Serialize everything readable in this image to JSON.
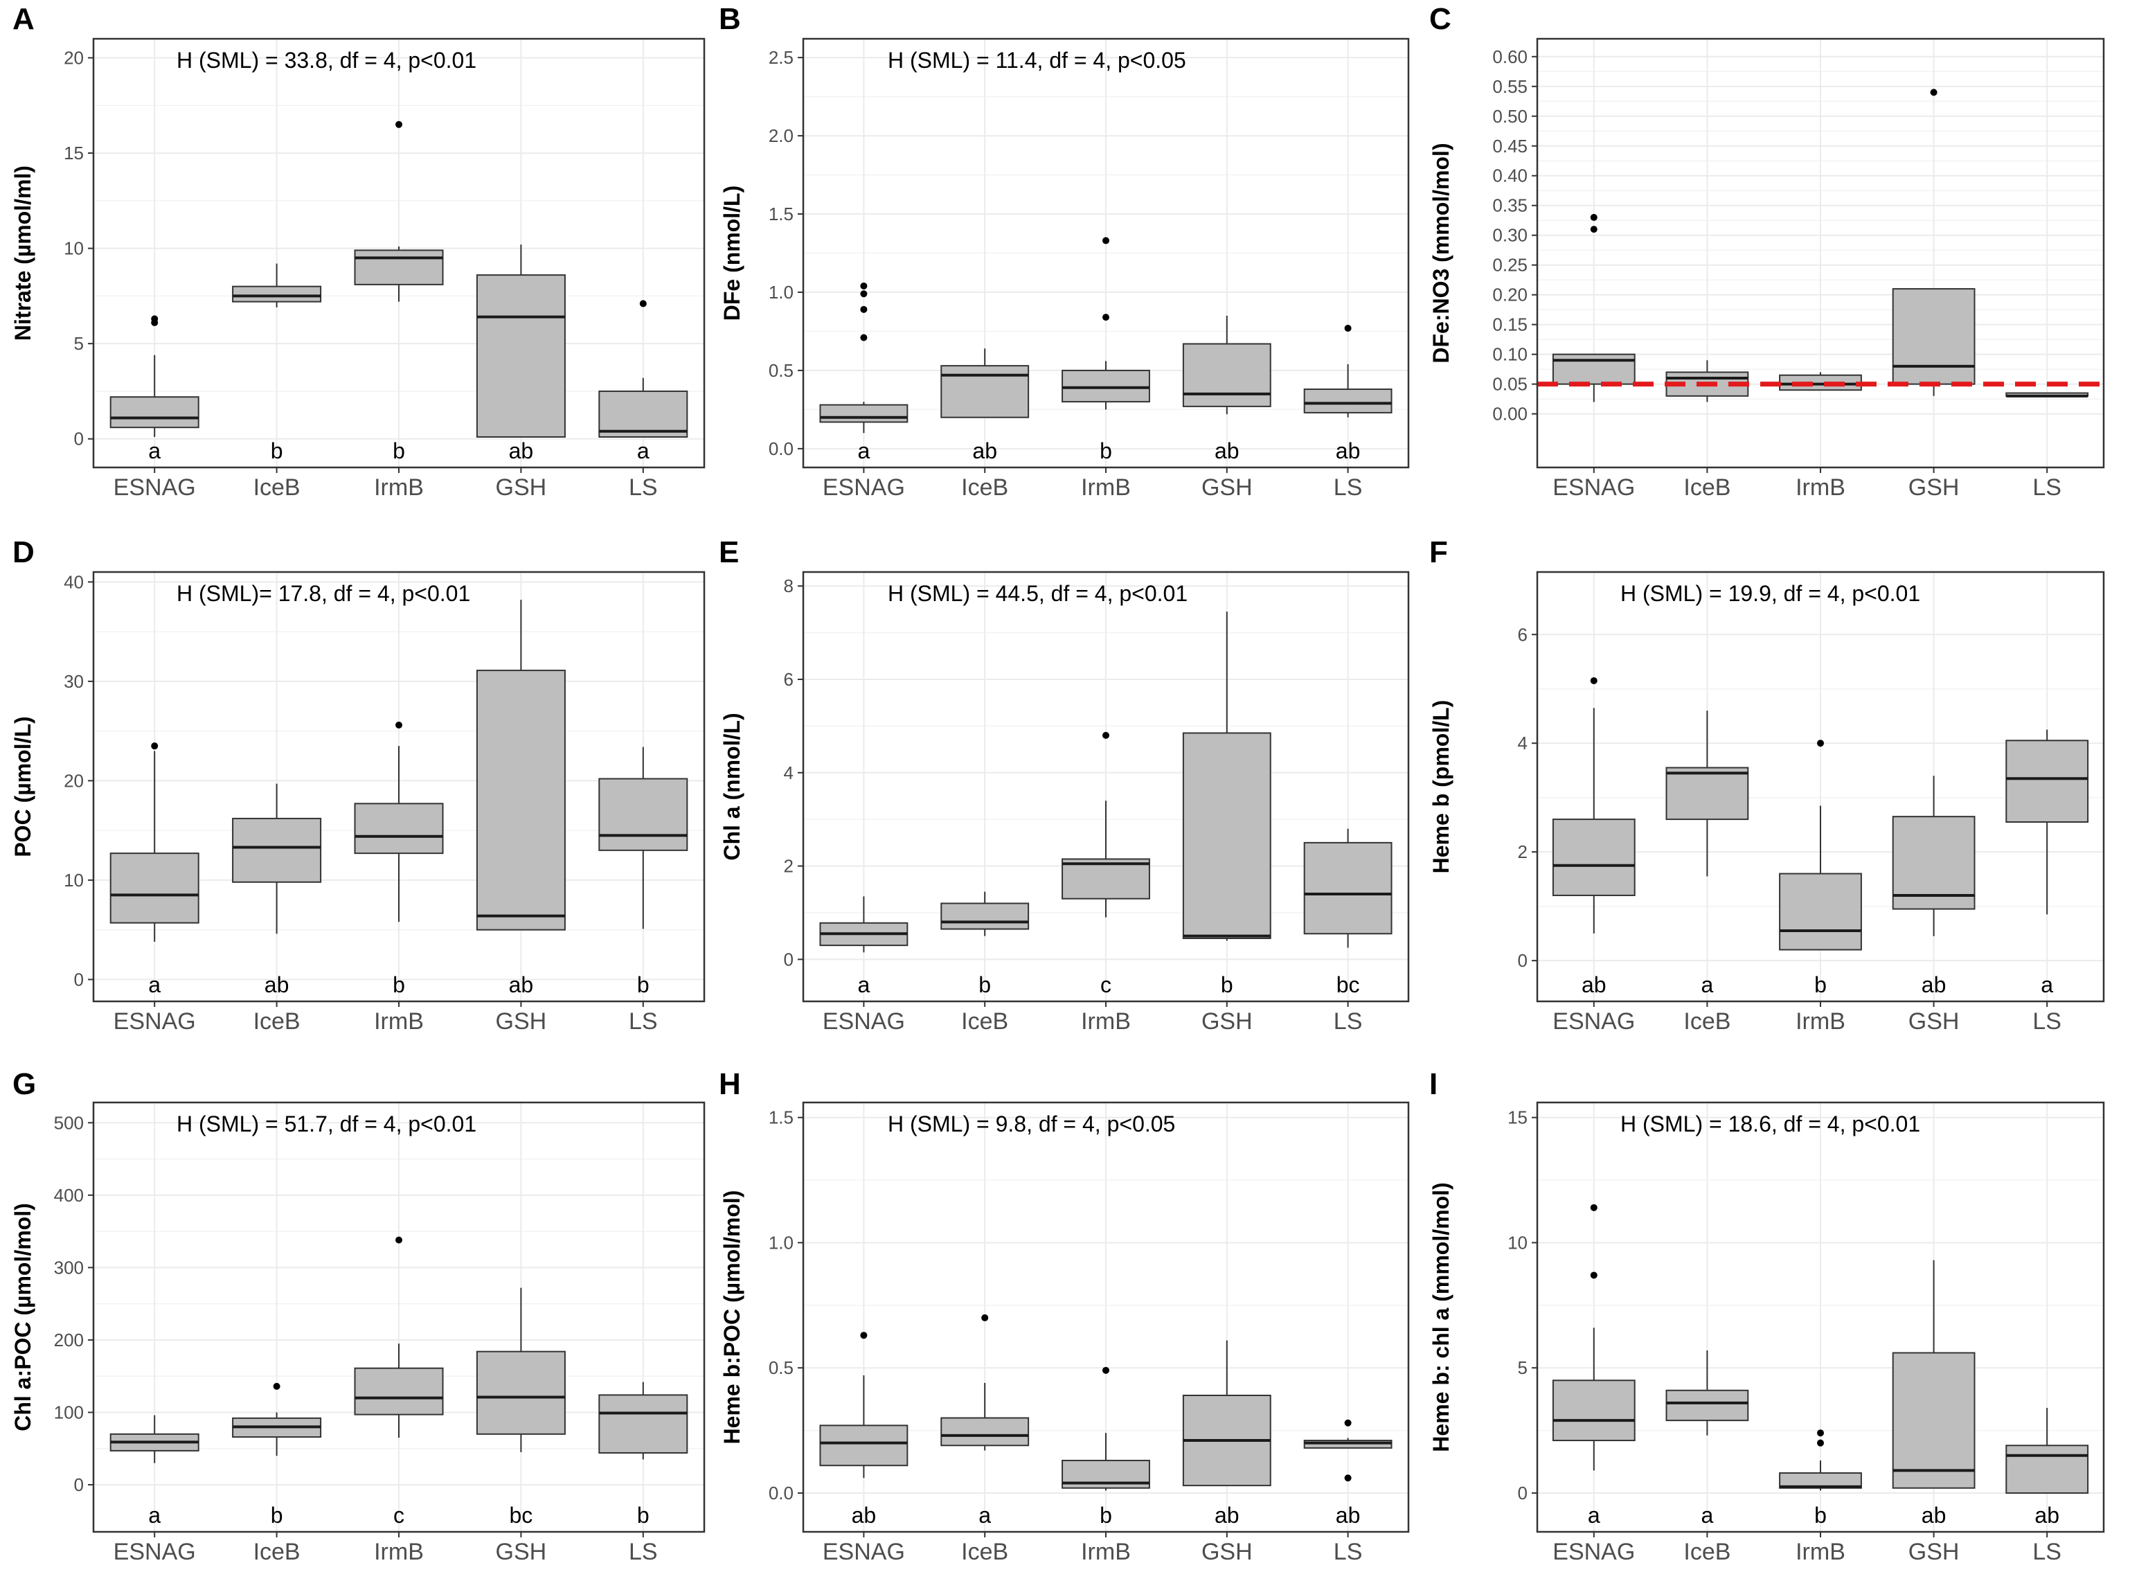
{
  "figure": {
    "groups": [
      "ESNAG",
      "IceB",
      "IrmB",
      "GSH",
      "LS"
    ],
    "colors": {
      "box_fill": "#bebebe",
      "grid": "#ebebeb",
      "frame": "#333333",
      "reference_line": "#e31a1c"
    }
  },
  "chart_data": [
    {
      "panel": "A",
      "type": "box",
      "ylabel": "Nitrate (µmol/ml)",
      "annotation": "H (SML) = 33.8, df = 4, p<0.01",
      "ylim": [
        -1.5,
        21
      ],
      "yticks": [
        0,
        5,
        10,
        15,
        20
      ],
      "yticklabels": [
        "0",
        "5",
        "10",
        "15",
        "20"
      ],
      "categories": [
        "ESNAG",
        "IceB",
        "IrmB",
        "GSH",
        "LS"
      ],
      "boxes": [
        {
          "category": "ESNAG",
          "whisker_low": 0.1,
          "q1": 0.6,
          "median": 1.1,
          "q3": 2.2,
          "whisker_high": 4.4,
          "outliers": [
            6.1,
            6.3
          ]
        },
        {
          "category": "IceB",
          "whisker_low": 6.9,
          "q1": 7.2,
          "median": 7.5,
          "q3": 8.0,
          "whisker_high": 9.2,
          "outliers": []
        },
        {
          "category": "IrmB",
          "whisker_low": 7.2,
          "q1": 8.1,
          "median": 9.5,
          "q3": 9.9,
          "whisker_high": 10.1,
          "outliers": [
            16.5
          ]
        },
        {
          "category": "GSH",
          "whisker_low": 0.1,
          "q1": 0.1,
          "median": 6.4,
          "q3": 8.6,
          "whisker_high": 10.2,
          "outliers": []
        },
        {
          "category": "LS",
          "whisker_low": 0.1,
          "q1": 0.1,
          "median": 0.4,
          "q3": 2.5,
          "whisker_high": 3.2,
          "outliers": [
            7.1
          ]
        }
      ],
      "group_letters": [
        "a",
        "b",
        "b",
        "ab",
        "a"
      ]
    },
    {
      "panel": "B",
      "type": "box",
      "ylabel": "DFe (nmol/L)",
      "annotation": "H (SML) = 11.4, df = 4, p<0.05",
      "ylim": [
        -0.12,
        2.62
      ],
      "yticks": [
        0,
        0.5,
        1,
        1.5,
        2,
        2.5
      ],
      "yticklabels": [
        "0.0",
        "0.5",
        "1.0",
        "1.5",
        "2.0",
        "2.5"
      ],
      "categories": [
        "ESNAG",
        "IceB",
        "IrmB",
        "GSH",
        "LS"
      ],
      "boxes": [
        {
          "category": "ESNAG",
          "whisker_low": 0.1,
          "q1": 0.17,
          "median": 0.2,
          "q3": 0.28,
          "whisker_high": 0.3,
          "outliers": [
            0.71,
            0.89,
            0.99,
            1.04
          ]
        },
        {
          "category": "IceB",
          "whisker_low": 0.2,
          "q1": 0.2,
          "median": 0.47,
          "q3": 0.53,
          "whisker_high": 0.64,
          "outliers": []
        },
        {
          "category": "IrmB",
          "whisker_low": 0.25,
          "q1": 0.3,
          "median": 0.39,
          "q3": 0.5,
          "whisker_high": 0.56,
          "outliers": [
            0.84,
            1.33
          ]
        },
        {
          "category": "GSH",
          "whisker_low": 0.22,
          "q1": 0.27,
          "median": 0.35,
          "q3": 0.67,
          "whisker_high": 0.85,
          "outliers": []
        },
        {
          "category": "LS",
          "whisker_low": 0.2,
          "q1": 0.23,
          "median": 0.29,
          "q3": 0.38,
          "whisker_high": 0.54,
          "outliers": [
            0.77
          ]
        }
      ],
      "group_letters": [
        "a",
        "ab",
        "b",
        "ab",
        "ab"
      ]
    },
    {
      "panel": "C",
      "type": "box",
      "ylabel": "DFe:NO3 (mmol/mol)",
      "annotation": "",
      "ylim": [
        -0.09,
        0.63
      ],
      "yticks": [
        0,
        0.05,
        0.1,
        0.15,
        0.2,
        0.25,
        0.3,
        0.35,
        0.4,
        0.45,
        0.5,
        0.55,
        0.6
      ],
      "yticklabels": [
        "0.00",
        "0.05",
        "0.10",
        "0.15",
        "0.20",
        "0.25",
        "0.30",
        "0.35",
        "0.40",
        "0.45",
        "0.50",
        "0.55",
        "0.60"
      ],
      "categories": [
        "ESNAG",
        "IceB",
        "IrmB",
        "GSH",
        "LS"
      ],
      "reference_line": 0.05,
      "boxes": [
        {
          "category": "ESNAG",
          "whisker_low": 0.02,
          "q1": 0.05,
          "median": 0.09,
          "q3": 0.1,
          "whisker_high": 0.1,
          "outliers": [
            0.31,
            0.33
          ]
        },
        {
          "category": "IceB",
          "whisker_low": 0.02,
          "q1": 0.03,
          "median": 0.06,
          "q3": 0.07,
          "whisker_high": 0.09,
          "outliers": []
        },
        {
          "category": "IrmB",
          "whisker_low": 0.04,
          "q1": 0.04,
          "median": 0.05,
          "q3": 0.065,
          "whisker_high": 0.07,
          "outliers": []
        },
        {
          "category": "GSH",
          "whisker_low": 0.03,
          "q1": 0.05,
          "median": 0.08,
          "q3": 0.21,
          "whisker_high": 0.21,
          "outliers": [
            0.54
          ]
        },
        {
          "category": "LS",
          "whisker_low": 0.03,
          "q1": 0.03,
          "median": 0.03,
          "q3": 0.035,
          "whisker_high": 0.035,
          "outliers": []
        }
      ],
      "group_letters": [
        "",
        "",
        "",
        "",
        ""
      ]
    },
    {
      "panel": "D",
      "type": "box",
      "ylabel": "POC (µmol/L)",
      "annotation": "H (SML)= 17.8, df = 4, p<0.01",
      "ylim": [
        -2.2,
        41
      ],
      "yticks": [
        0,
        10,
        20,
        30,
        40
      ],
      "yticklabels": [
        "0",
        "10",
        "20",
        "30",
        "40"
      ],
      "categories": [
        "ESNAG",
        "IceB",
        "IrmB",
        "GSH",
        "LS"
      ],
      "boxes": [
        {
          "category": "ESNAG",
          "whisker_low": 3.8,
          "q1": 5.7,
          "median": 8.5,
          "q3": 12.7,
          "whisker_high": 23.0,
          "outliers": [
            23.5
          ]
        },
        {
          "category": "IceB",
          "whisker_low": 4.6,
          "q1": 9.8,
          "median": 13.3,
          "q3": 16.2,
          "whisker_high": 19.7,
          "outliers": []
        },
        {
          "category": "IrmB",
          "whisker_low": 5.8,
          "q1": 12.7,
          "median": 14.4,
          "q3": 17.7,
          "whisker_high": 23.5,
          "outliers": [
            25.6
          ]
        },
        {
          "category": "GSH",
          "whisker_low": 5.0,
          "q1": 5.0,
          "median": 6.4,
          "q3": 31.1,
          "whisker_high": 38.2,
          "outliers": []
        },
        {
          "category": "LS",
          "whisker_low": 5.1,
          "q1": 13.0,
          "median": 14.5,
          "q3": 20.2,
          "whisker_high": 23.4,
          "outliers": []
        }
      ],
      "group_letters": [
        "a",
        "ab",
        "b",
        "ab",
        "b"
      ]
    },
    {
      "panel": "E",
      "type": "box",
      "ylabel": "Chl a (nmol/L)",
      "annotation": "H (SML) = 44.5, df = 4, p<0.01",
      "ylim": [
        -0.9,
        8.3
      ],
      "yticks": [
        0,
        2,
        4,
        6,
        8
      ],
      "yticklabels": [
        "0",
        "2",
        "4",
        "6",
        "8"
      ],
      "categories": [
        "ESNAG",
        "IceB",
        "IrmB",
        "GSH",
        "LS"
      ],
      "boxes": [
        {
          "category": "ESNAG",
          "whisker_low": 0.15,
          "q1": 0.3,
          "median": 0.55,
          "q3": 0.78,
          "whisker_high": 1.35,
          "outliers": []
        },
        {
          "category": "IceB",
          "whisker_low": 0.5,
          "q1": 0.65,
          "median": 0.8,
          "q3": 1.2,
          "whisker_high": 1.45,
          "outliers": []
        },
        {
          "category": "IrmB",
          "whisker_low": 0.9,
          "q1": 1.3,
          "median": 2.05,
          "q3": 2.15,
          "whisker_high": 3.4,
          "outliers": [
            4.8
          ]
        },
        {
          "category": "GSH",
          "whisker_low": 0.4,
          "q1": 0.45,
          "median": 0.5,
          "q3": 4.85,
          "whisker_high": 7.45,
          "outliers": []
        },
        {
          "category": "LS",
          "whisker_low": 0.25,
          "q1": 0.55,
          "median": 1.4,
          "q3": 2.5,
          "whisker_high": 2.8,
          "outliers": []
        }
      ],
      "group_letters": [
        "a",
        "b",
        "c",
        "b",
        "bc"
      ]
    },
    {
      "panel": "F",
      "type": "box",
      "ylabel": "Heme b (pmol/L)",
      "annotation": "H (SML) = 19.9, df = 4, p<0.01",
      "ylim": [
        -0.75,
        7.15
      ],
      "yticks": [
        0,
        2,
        4,
        6
      ],
      "yticklabels": [
        "0",
        "2",
        "4",
        "6"
      ],
      "categories": [
        "ESNAG",
        "IceB",
        "IrmB",
        "GSH",
        "LS"
      ],
      "boxes": [
        {
          "category": "ESNAG",
          "whisker_low": 0.5,
          "q1": 1.2,
          "median": 1.75,
          "q3": 2.6,
          "whisker_high": 4.65,
          "outliers": [
            5.15
          ]
        },
        {
          "category": "IceB",
          "whisker_low": 1.55,
          "q1": 2.6,
          "median": 3.45,
          "q3": 3.55,
          "whisker_high": 4.6,
          "outliers": []
        },
        {
          "category": "IrmB",
          "whisker_low": 0.2,
          "q1": 0.2,
          "median": 0.55,
          "q3": 1.6,
          "whisker_high": 2.85,
          "outliers": [
            4.0
          ]
        },
        {
          "category": "GSH",
          "whisker_low": 0.45,
          "q1": 0.95,
          "median": 1.2,
          "q3": 2.65,
          "whisker_high": 3.4,
          "outliers": []
        },
        {
          "category": "LS",
          "whisker_low": 0.85,
          "q1": 2.55,
          "median": 3.35,
          "q3": 4.05,
          "whisker_high": 4.25,
          "outliers": []
        }
      ],
      "group_letters": [
        "ab",
        "a",
        "b",
        "ab",
        "a"
      ]
    },
    {
      "panel": "G",
      "type": "box",
      "ylabel": "Chl a:POC (µmol/mol)",
      "annotation": "H (SML) = 51.7, df = 4, p<0.01",
      "ylim": [
        -65,
        528
      ],
      "yticks": [
        0,
        100,
        200,
        300,
        400,
        500
      ],
      "yticklabels": [
        "0",
        "100",
        "200",
        "300",
        "400",
        "500"
      ],
      "categories": [
        "ESNAG",
        "IceB",
        "IrmB",
        "GSH",
        "LS"
      ],
      "boxes": [
        {
          "category": "ESNAG",
          "whisker_low": 30,
          "q1": 47,
          "median": 59,
          "q3": 70,
          "whisker_high": 96,
          "outliers": []
        },
        {
          "category": "IceB",
          "whisker_low": 40,
          "q1": 66,
          "median": 80,
          "q3": 92,
          "whisker_high": 100,
          "outliers": [
            136
          ]
        },
        {
          "category": "IrmB",
          "whisker_low": 65,
          "q1": 97,
          "median": 120,
          "q3": 161,
          "whisker_high": 195,
          "outliers": [
            338
          ]
        },
        {
          "category": "GSH",
          "whisker_low": 45,
          "q1": 70,
          "median": 121,
          "q3": 184,
          "whisker_high": 272,
          "outliers": []
        },
        {
          "category": "LS",
          "whisker_low": 35,
          "q1": 44,
          "median": 99,
          "q3": 124,
          "whisker_high": 142,
          "outliers": []
        }
      ],
      "group_letters": [
        "a",
        "b",
        "c",
        "bc",
        "b"
      ]
    },
    {
      "panel": "H",
      "type": "box",
      "ylabel": "Heme b:POC (µmol/mol)",
      "annotation": "H (SML) = 9.8, df = 4, p<0.05",
      "ylim": [
        -0.155,
        1.56
      ],
      "yticks": [
        0,
        0.5,
        1,
        1.5
      ],
      "yticklabels": [
        "0.0",
        "0.5",
        "1.0",
        "1.5"
      ],
      "categories": [
        "ESNAG",
        "IceB",
        "IrmB",
        "GSH",
        "LS"
      ],
      "boxes": [
        {
          "category": "ESNAG",
          "whisker_low": 0.06,
          "q1": 0.11,
          "median": 0.2,
          "q3": 0.27,
          "whisker_high": 0.47,
          "outliers": [
            0.63
          ]
        },
        {
          "category": "IceB",
          "whisker_low": 0.17,
          "q1": 0.19,
          "median": 0.23,
          "q3": 0.3,
          "whisker_high": 0.44,
          "outliers": [
            0.7
          ]
        },
        {
          "category": "IrmB",
          "whisker_low": 0.01,
          "q1": 0.02,
          "median": 0.04,
          "q3": 0.13,
          "whisker_high": 0.24,
          "outliers": [
            0.49
          ]
        },
        {
          "category": "GSH",
          "whisker_low": 0.03,
          "q1": 0.03,
          "median": 0.21,
          "q3": 0.39,
          "whisker_high": 0.61,
          "outliers": []
        },
        {
          "category": "LS",
          "whisker_low": 0.18,
          "q1": 0.18,
          "median": 0.2,
          "q3": 0.21,
          "whisker_high": 0.22,
          "outliers": [
            0.06,
            0.28
          ]
        }
      ],
      "group_letters": [
        "ab",
        "a",
        "b",
        "ab",
        "ab"
      ]
    },
    {
      "panel": "I",
      "type": "box",
      "ylabel": "Heme b: chl a (mmol/mol)",
      "annotation": "H (SML) = 18.6, df = 4, p<0.01",
      "ylim": [
        -1.55,
        15.6
      ],
      "yticks": [
        0,
        5,
        10,
        15
      ],
      "yticklabels": [
        "0",
        "5",
        "10",
        "15"
      ],
      "categories": [
        "ESNAG",
        "IceB",
        "IrmB",
        "GSH",
        "LS"
      ],
      "boxes": [
        {
          "category": "ESNAG",
          "whisker_low": 0.9,
          "q1": 2.1,
          "median": 2.9,
          "q3": 4.5,
          "whisker_high": 6.6,
          "outliers": [
            8.7,
            11.4
          ]
        },
        {
          "category": "IceB",
          "whisker_low": 2.3,
          "q1": 2.9,
          "median": 3.6,
          "q3": 4.1,
          "whisker_high": 5.7,
          "outliers": []
        },
        {
          "category": "IrmB",
          "whisker_low": 0.1,
          "q1": 0.2,
          "median": 0.25,
          "q3": 0.8,
          "whisker_high": 1.3,
          "outliers": [
            2.0,
            2.4
          ]
        },
        {
          "category": "GSH",
          "whisker_low": 0.2,
          "q1": 0.2,
          "median": 0.9,
          "q3": 5.6,
          "whisker_high": 9.3,
          "outliers": []
        },
        {
          "category": "LS",
          "whisker_low": 0.0,
          "q1": 0.0,
          "median": 1.5,
          "q3": 1.9,
          "whisker_high": 3.4,
          "outliers": []
        }
      ],
      "group_letters": [
        "a",
        "a",
        "b",
        "ab",
        "ab"
      ]
    }
  ]
}
